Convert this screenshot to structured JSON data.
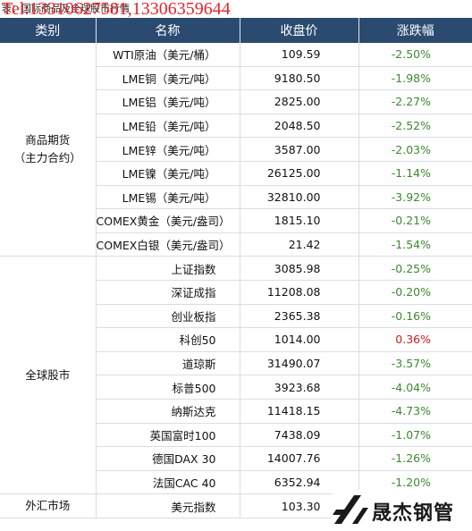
{
  "caption": "表：国际商品及全球股市行情",
  "phone": "Tel:13310627581,13306359644",
  "headers": {
    "category": "类别",
    "name": "名称",
    "close": "收盘价",
    "change": "涨跌幅"
  },
  "groups": [
    {
      "category": "商品期货\n（主力合约）",
      "rows": [
        {
          "name": "WTI原油（美元/桶）",
          "close": "109.59",
          "change": "-2.50%"
        },
        {
          "name": "LME铜（美元/吨）",
          "close": "9180.50",
          "change": "-1.98%"
        },
        {
          "name": "LME铝（美元/吨）",
          "close": "2825.00",
          "change": "-2.27%"
        },
        {
          "name": "LME铅（美元/吨）",
          "close": "2048.50",
          "change": "-2.52%"
        },
        {
          "name": "LME锌（美元/吨）",
          "close": "3587.00",
          "change": "-2.03%"
        },
        {
          "name": "LME镍（美元/吨）",
          "close": "26125.00",
          "change": "-1.14%"
        },
        {
          "name": "LME锡（美元/吨）",
          "close": "32810.00",
          "change": "-3.92%"
        },
        {
          "name": "COMEX黄金（美元/盎司）",
          "close": "1815.10",
          "change": "-0.21%"
        },
        {
          "name": "COMEX白银（美元/盎司）",
          "close": "21.42",
          "change": "-1.54%"
        }
      ]
    },
    {
      "category": "全球股市",
      "rows": [
        {
          "name": "上证指数",
          "close": "3085.98",
          "change": "-0.25%"
        },
        {
          "name": "深证成指",
          "close": "11208.08",
          "change": "-0.20%"
        },
        {
          "name": "创业板指",
          "close": "2365.38",
          "change": "-0.16%"
        },
        {
          "name": "科创50",
          "close": "1014.00",
          "change": "0.36%"
        },
        {
          "name": "道琼斯",
          "close": "31490.07",
          "change": "-3.57%"
        },
        {
          "name": "标普500",
          "close": "3923.68",
          "change": "-4.04%"
        },
        {
          "name": "纳斯达克",
          "close": "11418.15",
          "change": "-4.73%"
        },
        {
          "name": "英国富时100",
          "close": "7438.09",
          "change": "-1.07%"
        },
        {
          "name": "德国DAX 30",
          "close": "14007.76",
          "change": "-1.26%"
        },
        {
          "name": "法国CAC 40",
          "close": "6352.94",
          "change": "-1.20%"
        }
      ]
    },
    {
      "category": "外汇市场",
      "rows": [
        {
          "name": "美元指数",
          "close": "103.30",
          "change": ""
        }
      ]
    }
  ],
  "logo": {
    "text": "晟杰钢管",
    "icon": "diagonal-slash-logo-icon"
  },
  "colors": {
    "header_bg": "#2b4a6f",
    "negative": "#3b8a2e",
    "positive": "#d01c1c"
  }
}
